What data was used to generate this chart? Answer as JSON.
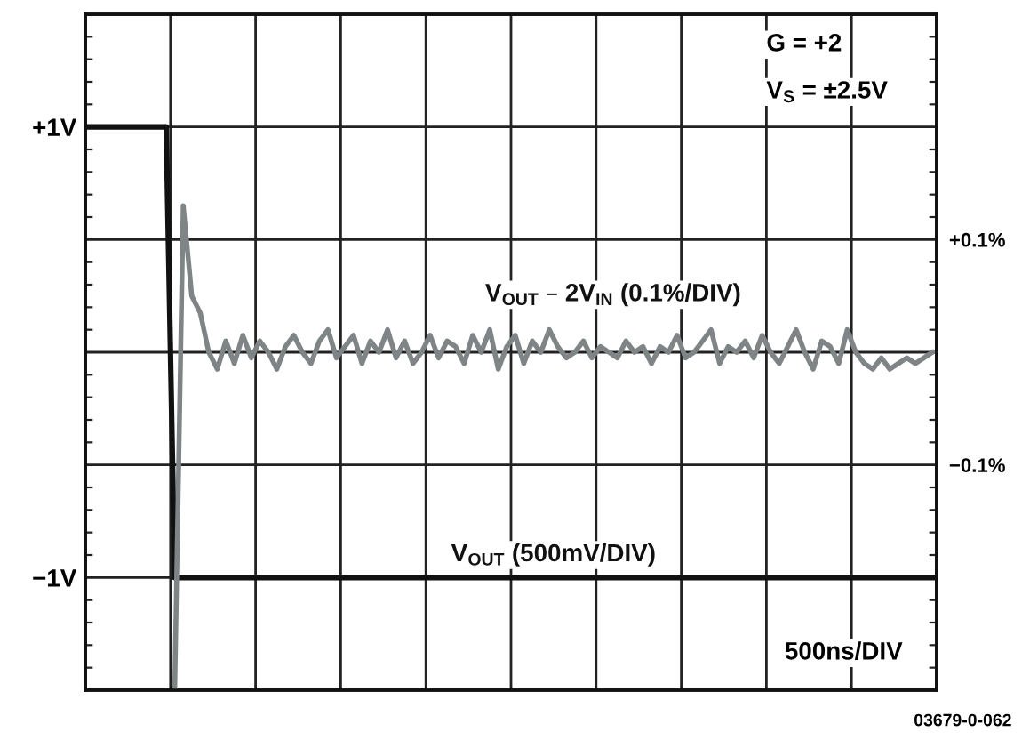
{
  "chart_data": {
    "type": "line",
    "categories": [
      null,
      null,
      null,
      null,
      null,
      null,
      null,
      null,
      null,
      null,
      null,
      null,
      null,
      null,
      null,
      null,
      null,
      null,
      null,
      null,
      null,
      null,
      null,
      null,
      null,
      null,
      null,
      null,
      null,
      null,
      null,
      null,
      null,
      null,
      null,
      null,
      null,
      null,
      null,
      null,
      null,
      null,
      null,
      null,
      null,
      null,
      null,
      null,
      null,
      null,
      null,
      null,
      null,
      null,
      null,
      null,
      null,
      null,
      null,
      null,
      null,
      null,
      null,
      null,
      null,
      null,
      null,
      null,
      null,
      null,
      null,
      null,
      null,
      null,
      null,
      null,
      null,
      null,
      null,
      null,
      null,
      null,
      null,
      null,
      null,
      null,
      null,
      null,
      null,
      null,
      null,
      null,
      null,
      null,
      null,
      null,
      null,
      null,
      null,
      null
    ],
    "series": [
      {
        "name": "V$_{OUT}$ (500mV/DIV)",
        "color": "#111111",
        "values": [
          1,
          1,
          1,
          1,
          1,
          1,
          1,
          1,
          1,
          1,
          -1,
          -1,
          -1,
          -1,
          -1,
          -1,
          -1,
          -1,
          -1,
          -1,
          -1,
          -1,
          -1,
          -1,
          -1,
          -1,
          -1,
          -1,
          -1,
          -1,
          -1,
          -1,
          -1,
          -1,
          -1,
          -1,
          -1,
          -1,
          -1,
          -1,
          -1,
          -1,
          -1,
          -1,
          -1,
          -1,
          -1,
          -1,
          -1,
          -1,
          -1,
          -1,
          -1,
          -1,
          -1,
          -1,
          -1,
          -1,
          -1,
          -1,
          -1,
          -1,
          -1,
          -1,
          -1,
          -1,
          -1,
          -1,
          -1,
          -1,
          -1,
          -1,
          -1,
          -1,
          -1,
          -1,
          -1,
          -1,
          -1,
          -1,
          -1,
          -1,
          -1,
          -1,
          -1,
          -1,
          -1,
          -1,
          -1,
          -1,
          -1,
          -1,
          -1,
          -1,
          -1,
          -1,
          -1,
          -1,
          -1,
          -1
        ]
      },
      {
        "name": "V$_{OUT}$ – 2V$_{IN}$ (0.1%/DIV)",
        "color": "#7f8587",
        "axis": "y2",
        "values": [
          null,
          null,
          null,
          null,
          null,
          null,
          null,
          null,
          null,
          null,
          -0.3,
          0.13,
          0.05,
          0.035,
          0.0,
          -0.015,
          0.01,
          -0.01,
          0.015,
          -0.005,
          0.01,
          0.0,
          -0.015,
          0.005,
          0.015,
          0.0,
          -0.01,
          0.01,
          0.02,
          -0.005,
          0.005,
          0.015,
          -0.01,
          0.01,
          0.0,
          0.02,
          -0.005,
          0.01,
          -0.01,
          0.0,
          0.015,
          -0.005,
          0.01,
          0.005,
          -0.01,
          0.015,
          0.0,
          0.02,
          -0.015,
          0.005,
          0.015,
          -0.01,
          0.01,
          0.0,
          0.02,
          0.005,
          -0.005,
          0.0,
          0.01,
          -0.005,
          0.005,
          0.0,
          -0.005,
          0.01,
          0.0,
          0.005,
          -0.01,
          0.005,
          0.0,
          0.015,
          -0.005,
          0.0,
          0.01,
          0.02,
          -0.01,
          0.005,
          0.0,
          0.01,
          -0.005,
          0.015,
          0.0,
          -0.01,
          0.005,
          0.02,
          0.0,
          -0.015,
          0.01,
          0.005,
          -0.01,
          0.02,
          0.0,
          -0.01,
          -0.015,
          -0.005,
          -0.015,
          -0.01,
          -0.005,
          -0.01,
          -0.005,
          0.0
        ]
      }
    ],
    "ylim": [
      -1.5,
      1.5
    ],
    "yticks": [
      {
        "value": -1.5,
        "label": null
      },
      {
        "value": -1,
        "label": "−1V"
      },
      {
        "value": -0.5,
        "label": null
      },
      {
        "value": 0,
        "label": null
      },
      {
        "value": 0.5,
        "label": null
      },
      {
        "value": 1,
        "label": "+1V"
      },
      {
        "value": 1.5,
        "label": null
      }
    ],
    "y2lim": [
      -0.3,
      0.3
    ],
    "y2ticks": [
      {
        "value": 0.1,
        "label": "+0.1%"
      },
      {
        "value": -0.1,
        "label": "−0.1%"
      }
    ],
    "grid": true,
    "legend": false,
    "annotations": [
      "G = +2",
      "V$_{S}$ = ±2.5V",
      "500ns/DIV",
      "03679-0-062"
    ]
  }
}
